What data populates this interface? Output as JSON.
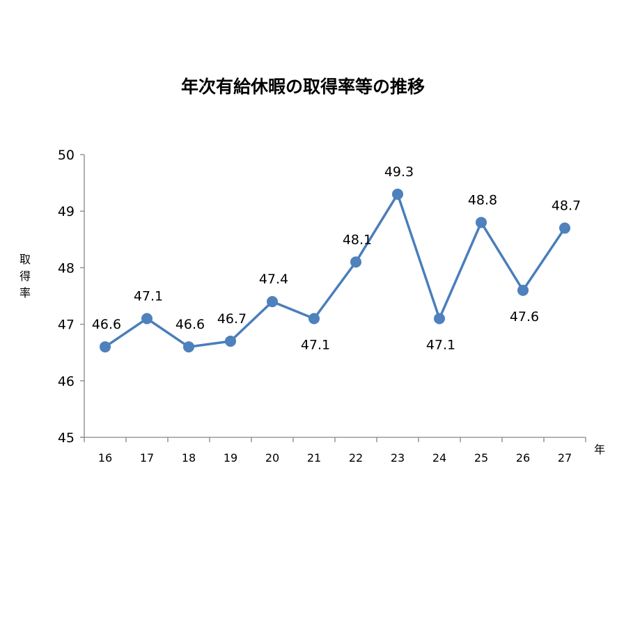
{
  "chart_data": {
    "type": "line",
    "title": "年次有給休暇の取得率等の推移",
    "ylabel": "取得率",
    "xlabel": "年",
    "categories": [
      "16",
      "17",
      "18",
      "19",
      "20",
      "21",
      "22",
      "23",
      "24",
      "25",
      "26",
      "27"
    ],
    "series": [
      {
        "values": [
          46.6,
          47.1,
          46.6,
          46.7,
          47.4,
          47.1,
          48.1,
          49.3,
          47.1,
          48.8,
          47.6,
          48.7
        ],
        "label_positions": [
          "above",
          "above",
          "above",
          "above",
          "above",
          "below",
          "above",
          "above",
          "below",
          "above",
          "below",
          "above"
        ]
      }
    ],
    "ylim": [
      45,
      50
    ],
    "yticks": [
      45,
      46,
      47,
      48,
      49,
      50
    ],
    "grid": false,
    "legend": "none",
    "colors": {
      "line": "#4a7ebb",
      "marker": "#4f81bd",
      "axis": "#868686"
    }
  }
}
